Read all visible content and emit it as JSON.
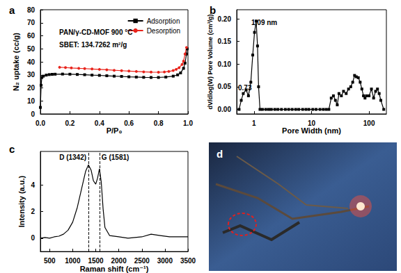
{
  "chart_data": [
    {
      "type": "line",
      "title": "a",
      "xlabel": "P/P₀",
      "ylabel": "N₂ uptake (cc/g)",
      "annotations": [
        "PAN/γ-CD-MOF 900 °C",
        "SBET: 134.7262 m²/g"
      ],
      "xlim": [
        0,
        1
      ],
      "xticks": [
        {
          "value": 0,
          "label": "0.0"
        },
        {
          "value": 0.2,
          "label": "0.2"
        },
        {
          "value": 0.4,
          "label": "0.4"
        },
        {
          "value": 0.6,
          "label": "0.6"
        },
        {
          "value": 0.8,
          "label": "0.8"
        },
        {
          "value": 1,
          "label": "1.0"
        }
      ],
      "ylim": [
        0,
        80
      ],
      "yticks": [
        0,
        10,
        20,
        30,
        40,
        50,
        60,
        70,
        80
      ],
      "grid": false,
      "legend": "upper right",
      "series": [
        {
          "name": "Adsorption",
          "color": "#000000",
          "marker": "square",
          "x": [
            0.0,
            0.005,
            0.01,
            0.02,
            0.04,
            0.06,
            0.08,
            0.1,
            0.15,
            0.2,
            0.25,
            0.3,
            0.35,
            0.4,
            0.45,
            0.5,
            0.55,
            0.6,
            0.65,
            0.7,
            0.75,
            0.8,
            0.85,
            0.9,
            0.93,
            0.95,
            0.97,
            0.98,
            0.99,
            0.995
          ],
          "values": [
            5,
            22,
            28,
            29,
            29.8,
            30.2,
            30.4,
            30.5,
            30.6,
            30.5,
            30.3,
            30.1,
            29.8,
            29.6,
            29.3,
            29.0,
            28.8,
            28.5,
            28.3,
            28.1,
            28.0,
            28.0,
            28.3,
            29.0,
            30.0,
            31.5,
            35,
            39,
            46,
            50
          ]
        },
        {
          "name": "Desorption",
          "color": "#e8241c",
          "marker": "circle",
          "x": [
            0.13,
            0.17,
            0.21,
            0.26,
            0.3,
            0.35,
            0.4,
            0.45,
            0.5,
            0.55,
            0.6,
            0.65,
            0.7,
            0.75,
            0.8,
            0.84,
            0.87,
            0.9,
            0.92,
            0.94,
            0.96,
            0.97,
            0.98,
            0.99
          ],
          "values": [
            35.8,
            35.6,
            35.3,
            35.0,
            34.8,
            34.5,
            34.2,
            33.9,
            33.5,
            33.2,
            32.9,
            32.6,
            32.3,
            32.1,
            32.0,
            32.2,
            32.6,
            33.3,
            34.2,
            35.5,
            38,
            40.5,
            46,
            51
          ]
        }
      ]
    },
    {
      "type": "line",
      "title": "b",
      "xlabel": "Pore Width (nm)",
      "ylabel": "dV/dlog(W) Pore Volume (cm³/g)",
      "annotations": [
        "1.09 nm",
        "0.73"
      ],
      "log": "x",
      "xlim": [
        0.5,
        200
      ],
      "xticks": [
        1,
        10,
        100
      ],
      "ylim": [
        -0.01,
        0.22
      ],
      "yticks": [
        {
          "value": 0,
          "label": "0.00"
        },
        {
          "value": 0.05,
          "label": "0.05"
        },
        {
          "value": 0.1,
          "label": "0.10"
        },
        {
          "value": 0.15,
          "label": "0.15"
        },
        {
          "value": 0.2,
          "label": "0.20"
        }
      ],
      "grid": false,
      "series": [
        {
          "name": "Pore Volume",
          "color": "#000000",
          "marker": "square",
          "x": [
            0.55,
            0.6,
            0.65,
            0.73,
            0.8,
            0.88,
            0.95,
            1.02,
            1.09,
            1.15,
            1.2,
            1.27,
            1.4,
            1.6,
            1.8,
            2.0,
            2.3,
            2.6,
            3,
            3.5,
            4,
            4.6,
            5.3,
            6,
            7,
            8,
            9,
            10.5,
            12,
            14,
            16,
            18,
            20,
            22,
            24,
            26,
            28,
            30,
            33,
            36,
            40,
            44,
            48,
            52,
            56,
            60,
            65,
            70,
            75,
            80,
            85,
            90,
            100,
            110,
            120,
            130,
            140,
            150,
            160,
            180
          ],
          "values": [
            0.0,
            0.02,
            0.035,
            0.043,
            0.03,
            0.06,
            0.12,
            0.17,
            0.195,
            0.14,
            0.05,
            0,
            0,
            0,
            0,
            0,
            0,
            0,
            0,
            0,
            0,
            0,
            0,
            0,
            0,
            0,
            0,
            0,
            0,
            0,
            0,
            0,
            0,
            0.025,
            0.03,
            0.02,
            0.01,
            0.035,
            0.03,
            0.04,
            0.035,
            0.045,
            0.05,
            0.06,
            0.075,
            0.072,
            0.07,
            0.06,
            0.045,
            0.03,
            0.025,
            0.03,
            0.03,
            0.045,
            0.025,
            0.04,
            0.045,
            0.035,
            0.02,
            0.0
          ]
        }
      ]
    },
    {
      "type": "line",
      "title": "c",
      "xlabel": "Raman shift (cm⁻¹)",
      "ylabel": "Intensity (a.u.)",
      "annotations": [
        {
          "text": "D (1342)",
          "x": 1342
        },
        {
          "text": "G (1581)",
          "x": 1581
        }
      ],
      "xlim": [
        300,
        3500
      ],
      "xticks": [
        500,
        1000,
        1500,
        2000,
        2500,
        3000,
        3500
      ],
      "ylim": [
        -1,
        6.5
      ],
      "yticks": [
        0,
        2,
        4
      ],
      "grid": false,
      "series": [
        {
          "name": "Raman",
          "color": "#000000",
          "marker": "none",
          "x": [
            300,
            400,
            500,
            600,
            700,
            800,
            900,
            1000,
            1100,
            1200,
            1280,
            1342,
            1400,
            1450,
            1500,
            1540,
            1581,
            1620,
            1660,
            1700,
            1800,
            2000,
            2200,
            2500,
            2700,
            2900,
            3100,
            3300,
            3500
          ],
          "values": [
            0.0,
            0.05,
            0.0,
            0.1,
            0.15,
            0.3,
            0.6,
            1.2,
            2.3,
            3.8,
            5.0,
            5.5,
            5.1,
            4.3,
            4.05,
            4.5,
            5.2,
            4.2,
            2.2,
            0.8,
            0.2,
            0.1,
            0.0,
            0.1,
            0.3,
            0.2,
            0.1,
            0.1,
            0.1
          ]
        }
      ]
    },
    {
      "type": "image",
      "title": "d"
    }
  ]
}
